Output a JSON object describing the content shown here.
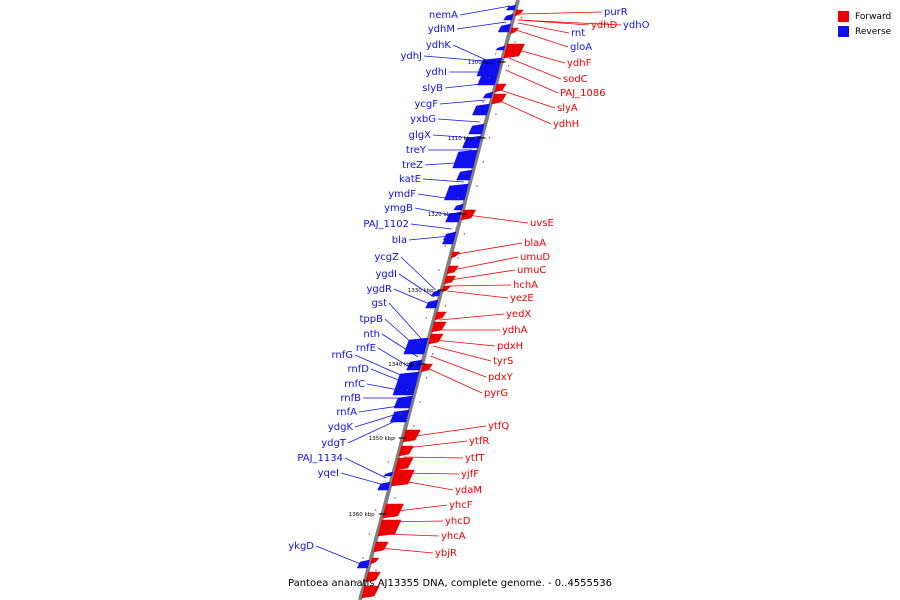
{
  "colors": {
    "forward": "#ee0000",
    "reverse": "#1010ee",
    "axis": "#808080"
  },
  "legend": {
    "forward": "Forward",
    "reverse": "Reverse"
  },
  "caption": "Pantoea ananatis AJ13355 DNA, complete genome. - 0..4555536",
  "ticks": [
    "1300 kbp",
    "1310 kbp",
    "1320 kbp",
    "1330 kbp",
    "1340 kbp",
    "1350 kbp",
    "1360 kbp"
  ],
  "reverse_genes": [
    "nemA",
    "ydhM",
    "ydhK",
    "ydhJ",
    "ydhI",
    "slyB",
    "ycgF",
    "yxbG",
    "glgX",
    "treY",
    "treZ",
    "katE",
    "ymdF",
    "ymgB",
    "PAJ_1102",
    "bla",
    "ycgZ",
    "ygdI",
    "ygdR",
    "gst",
    "tppB",
    "nth",
    "rnfE",
    "rnfG",
    "rnfD",
    "rnfC",
    "rnfB",
    "rnfA",
    "ydgK",
    "ydgT",
    "PAJ_1134",
    "yqeI",
    "ykgD"
  ],
  "forward_genes": [
    "purR",
    "ydhO",
    "ydhD",
    "rnt",
    "gloA",
    "ydhF",
    "sodC",
    "PAJ_1086",
    "slyA",
    "ydhH",
    "uvsE",
    "blaA",
    "umuD",
    "umuC",
    "hchA",
    "yezE",
    "yedX",
    "ydhA",
    "pdxH",
    "tyrS",
    "pdxY",
    "pyrG",
    "ytfQ",
    "ytfR",
    "ytfT",
    "yjfF",
    "ydaM",
    "yhcF",
    "yhcD",
    "yhcA",
    "ybjR"
  ]
}
